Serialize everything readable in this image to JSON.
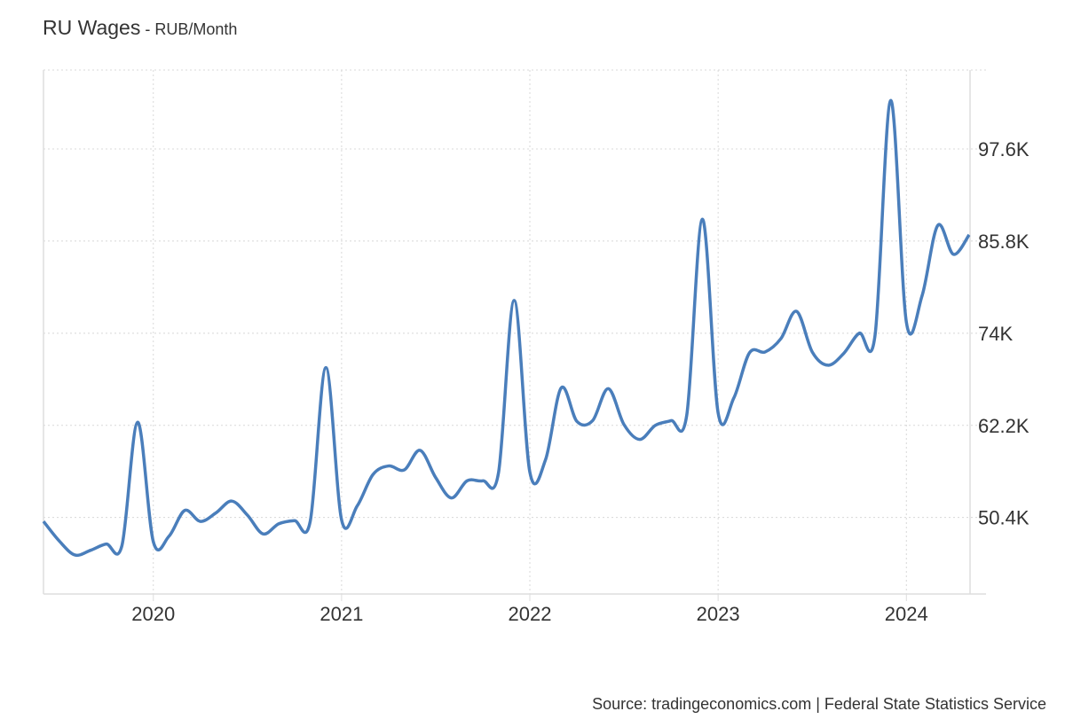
{
  "chart_data": {
    "type": "line",
    "title": "RU Wages",
    "subtitle": "RUB/Month",
    "xlabel": "",
    "ylabel": "",
    "x_start": "2019-06",
    "x_frequency": "monthly",
    "x_ticks": [
      "2020",
      "2021",
      "2022",
      "2023",
      "2024"
    ],
    "y_ticks": [
      "50.4K",
      "62.2K",
      "74K",
      "85.8K",
      "97.6K"
    ],
    "y_tick_values": [
      50.4,
      62.2,
      74.0,
      85.8,
      97.6
    ],
    "ylim": [
      40.6,
      107.7
    ],
    "xlim": [
      "2019-06",
      "2024-05"
    ],
    "y_axis_position": "right",
    "grid": true,
    "line_color": "#4a7ebb",
    "x": [
      "2019-06",
      "2019-07",
      "2019-08",
      "2019-09",
      "2019-10",
      "2019-11",
      "2019-12",
      "2020-01",
      "2020-02",
      "2020-03",
      "2020-04",
      "2020-05",
      "2020-06",
      "2020-07",
      "2020-08",
      "2020-09",
      "2020-10",
      "2020-11",
      "2020-12",
      "2021-01",
      "2021-02",
      "2021-03",
      "2021-04",
      "2021-05",
      "2021-06",
      "2021-07",
      "2021-08",
      "2021-09",
      "2021-10",
      "2021-11",
      "2021-12",
      "2022-01",
      "2022-02",
      "2022-03",
      "2022-04",
      "2022-05",
      "2022-06",
      "2022-07",
      "2022-08",
      "2022-09",
      "2022-10",
      "2022-11",
      "2022-12",
      "2023-01",
      "2023-02",
      "2023-03",
      "2023-04",
      "2023-05",
      "2023-06",
      "2023-07",
      "2023-08",
      "2023-09",
      "2023-10",
      "2023-11",
      "2023-12",
      "2024-01",
      "2024-02",
      "2024-03",
      "2024-04",
      "2024-05"
    ],
    "values": [
      49.9,
      47.4,
      45.6,
      46.2,
      47.0,
      46.8,
      62.6,
      47.3,
      48.0,
      51.3,
      49.9,
      51.0,
      52.5,
      50.7,
      48.3,
      49.6,
      50.0,
      49.9,
      69.6,
      50.1,
      51.9,
      55.9,
      57.0,
      56.5,
      59.0,
      55.5,
      52.9,
      55.1,
      55.1,
      56.1,
      78.2,
      56.2,
      57.8,
      67.0,
      62.7,
      62.8,
      66.9,
      62.3,
      60.4,
      62.2,
      62.8,
      63.5,
      88.6,
      63.8,
      65.7,
      71.5,
      71.6,
      73.3,
      76.8,
      71.6,
      69.9,
      71.4,
      74.0,
      73.7,
      103.8,
      75.4,
      78.8,
      87.8,
      84.1,
      86.6
    ],
    "units": "K RUB"
  },
  "source": "Source: tradingeconomics.com | Federal State Statistics Service"
}
